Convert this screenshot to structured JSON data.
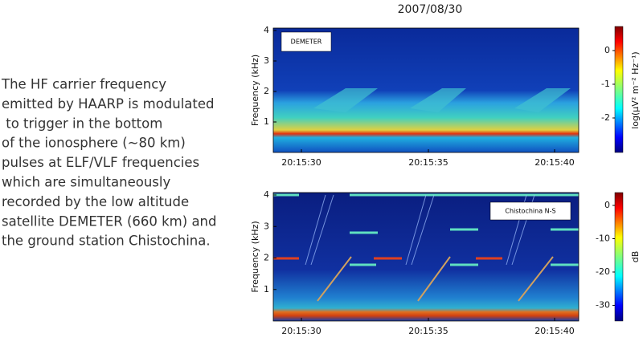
{
  "title": "2007/08/30",
  "description": {
    "lines": [
      "The HF carrier frequency",
      "emitted by HAARP is modulated",
      " to trigger in the bottom",
      "of the ionosphere (~80 km)",
      "pulses at ELF/VLF frequencies",
      "which are simultaneously",
      "recorded by the low altitude",
      "satellite DEMETER (660 km) and",
      "the ground station Chistochina."
    ]
  },
  "panels": [
    {
      "label": "DEMETER",
      "y_label": "Frequency (kHz)",
      "yticks": [
        1,
        2,
        3,
        4
      ],
      "xticks": [
        "20:15:30",
        "20:15:35",
        "20:15:40"
      ],
      "colorbar": {
        "label": "log(μV² m⁻² Hz⁻¹)",
        "ticks": [
          0,
          -1,
          -2
        ]
      }
    },
    {
      "label": "Chistochina N-S",
      "y_label": "Frequency (kHz)",
      "yticks": [
        1,
        2,
        3,
        4
      ],
      "xticks": [
        "20:15:30",
        "20:15:35",
        "20:15:40"
      ],
      "colorbar": {
        "label": "dB",
        "ticks": [
          0,
          -10,
          -20,
          -30
        ]
      }
    }
  ]
}
